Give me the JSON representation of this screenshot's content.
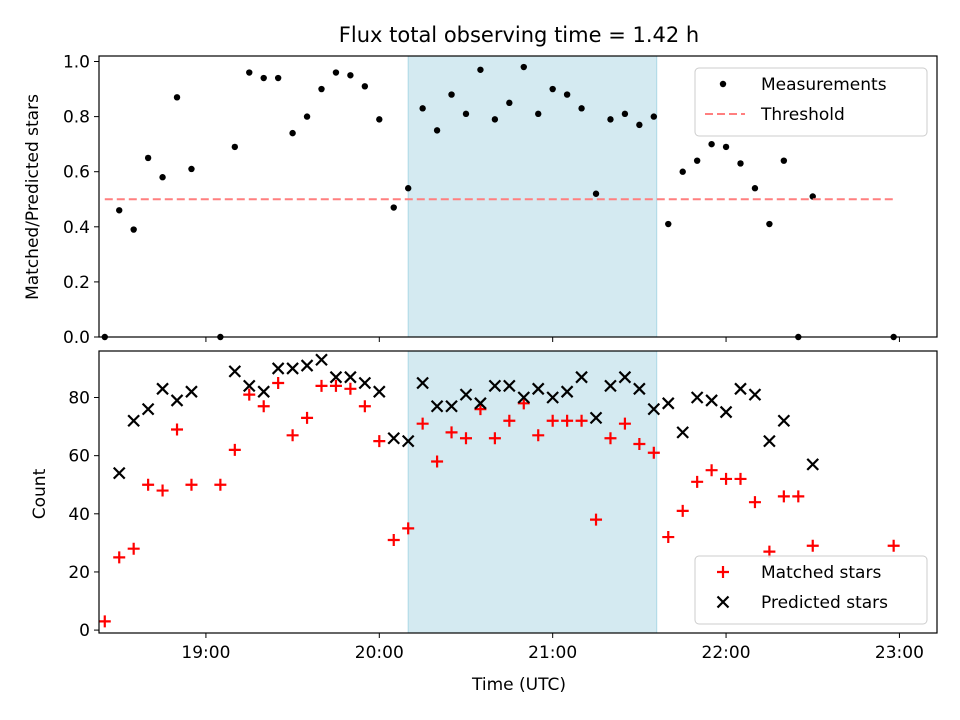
{
  "chart_data": [
    {
      "type": "scatter",
      "title": "Flux total observing time = 1.42 h",
      "xlabel": "",
      "ylabel": "Matched/Predicted stars",
      "xlim": [
        "18:23",
        "23:13"
      ],
      "ylim": [
        0,
        1.02
      ],
      "y_ticks": [
        "0.0",
        "0.2",
        "0.4",
        "0.6",
        "0.8",
        "1.0"
      ],
      "x_ticks": [
        "19:00",
        "20:00",
        "21:00",
        "22:00",
        "23:00"
      ],
      "shaded_region": {
        "x_start": "20:10",
        "x_end": "21:36",
        "color": "#d4eaf1"
      },
      "legend": {
        "position": "top-right",
        "entries": [
          "Measurements",
          "Threshold"
        ]
      },
      "series": [
        {
          "name": "Measurements",
          "marker": "dot",
          "color": "#000000",
          "points": [
            [
              "18:25",
              0.0
            ],
            [
              "18:30",
              0.46
            ],
            [
              "18:35",
              0.39
            ],
            [
              "18:40",
              0.65
            ],
            [
              "18:45",
              0.58
            ],
            [
              "18:50",
              0.87
            ],
            [
              "18:55",
              0.61
            ],
            [
              "19:05",
              0.0
            ],
            [
              "19:10",
              0.69
            ],
            [
              "19:15",
              0.96
            ],
            [
              "19:20",
              0.94
            ],
            [
              "19:25",
              0.94
            ],
            [
              "19:30",
              0.74
            ],
            [
              "19:35",
              0.8
            ],
            [
              "19:40",
              0.9
            ],
            [
              "19:45",
              0.96
            ],
            [
              "19:50",
              0.95
            ],
            [
              "19:55",
              0.91
            ],
            [
              "20:00",
              0.79
            ],
            [
              "20:05",
              0.47
            ],
            [
              "20:10",
              0.54
            ],
            [
              "20:15",
              0.83
            ],
            [
              "20:20",
              0.75
            ],
            [
              "20:25",
              0.88
            ],
            [
              "20:30",
              0.81
            ],
            [
              "20:35",
              0.97
            ],
            [
              "20:40",
              0.79
            ],
            [
              "20:45",
              0.85
            ],
            [
              "20:50",
              0.98
            ],
            [
              "20:55",
              0.81
            ],
            [
              "21:00",
              0.9
            ],
            [
              "21:05",
              0.88
            ],
            [
              "21:10",
              0.83
            ],
            [
              "21:15",
              0.52
            ],
            [
              "21:20",
              0.79
            ],
            [
              "21:25",
              0.81
            ],
            [
              "21:30",
              0.77
            ],
            [
              "21:35",
              0.8
            ],
            [
              "21:40",
              0.41
            ],
            [
              "21:45",
              0.6
            ],
            [
              "21:50",
              0.64
            ],
            [
              "21:55",
              0.7
            ],
            [
              "22:00",
              0.69
            ],
            [
              "22:05",
              0.63
            ],
            [
              "22:10",
              0.54
            ],
            [
              "22:15",
              0.41
            ],
            [
              "22:20",
              0.64
            ],
            [
              "22:25",
              0.0
            ],
            [
              "22:30",
              0.51
            ],
            [
              "22:58",
              0.0
            ]
          ]
        },
        {
          "name": "Threshold",
          "line": "dashed",
          "color": "#ff7f7f",
          "points": [
            [
              "18:25",
              0.5
            ],
            [
              "22:58",
              0.5
            ]
          ]
        }
      ]
    },
    {
      "type": "scatter",
      "title": "",
      "xlabel": "Time (UTC)",
      "ylabel": "Count",
      "xlim": [
        "18:23",
        "23:13"
      ],
      "ylim": [
        -1,
        96
      ],
      "y_ticks": [
        "0",
        "20",
        "40",
        "60",
        "80"
      ],
      "x_ticks": [
        "19:00",
        "20:00",
        "21:00",
        "22:00",
        "23:00"
      ],
      "shaded_region": {
        "x_start": "20:10",
        "x_end": "21:36",
        "color": "#d4eaf1"
      },
      "legend": {
        "position": "bottom-right",
        "entries": [
          "Matched stars",
          "Predicted stars"
        ]
      },
      "series": [
        {
          "name": "Matched stars",
          "marker": "plus",
          "color": "#ff0000",
          "points": [
            [
              "18:25",
              3
            ],
            [
              "18:30",
              25
            ],
            [
              "18:35",
              28
            ],
            [
              "18:40",
              50
            ],
            [
              "18:45",
              48
            ],
            [
              "18:50",
              69
            ],
            [
              "18:55",
              50
            ],
            [
              "19:05",
              50
            ],
            [
              "19:10",
              62
            ],
            [
              "19:15",
              81
            ],
            [
              "19:20",
              77
            ],
            [
              "19:25",
              85
            ],
            [
              "19:30",
              67
            ],
            [
              "19:35",
              73
            ],
            [
              "19:40",
              84
            ],
            [
              "19:45",
              84
            ],
            [
              "19:50",
              83
            ],
            [
              "19:55",
              77
            ],
            [
              "20:00",
              65
            ],
            [
              "20:05",
              31
            ],
            [
              "20:10",
              35
            ],
            [
              "20:15",
              71
            ],
            [
              "20:20",
              58
            ],
            [
              "20:25",
              68
            ],
            [
              "20:30",
              66
            ],
            [
              "20:35",
              76
            ],
            [
              "20:40",
              66
            ],
            [
              "20:45",
              72
            ],
            [
              "20:50",
              78
            ],
            [
              "20:55",
              67
            ],
            [
              "21:00",
              72
            ],
            [
              "21:05",
              72
            ],
            [
              "21:10",
              72
            ],
            [
              "21:15",
              38
            ],
            [
              "21:20",
              66
            ],
            [
              "21:25",
              71
            ],
            [
              "21:30",
              64
            ],
            [
              "21:35",
              61
            ],
            [
              "21:40",
              32
            ],
            [
              "21:45",
              41
            ],
            [
              "21:50",
              51
            ],
            [
              "21:55",
              55
            ],
            [
              "22:00",
              52
            ],
            [
              "22:05",
              52
            ],
            [
              "22:10",
              44
            ],
            [
              "22:15",
              27
            ],
            [
              "22:20",
              46
            ],
            [
              "22:25",
              46
            ],
            [
              "22:30",
              29
            ],
            [
              "22:58",
              29
            ]
          ]
        },
        {
          "name": "Predicted stars",
          "marker": "x",
          "color": "#000000",
          "points": [
            [
              "18:30",
              54
            ],
            [
              "18:35",
              72
            ],
            [
              "18:40",
              76
            ],
            [
              "18:45",
              83
            ],
            [
              "18:50",
              79
            ],
            [
              "18:55",
              82
            ],
            [
              "19:10",
              89
            ],
            [
              "19:15",
              84
            ],
            [
              "19:20",
              82
            ],
            [
              "19:25",
              90
            ],
            [
              "19:30",
              90
            ],
            [
              "19:35",
              91
            ],
            [
              "19:40",
              93
            ],
            [
              "19:45",
              87
            ],
            [
              "19:50",
              87
            ],
            [
              "19:55",
              85
            ],
            [
              "20:00",
              82
            ],
            [
              "20:05",
              66
            ],
            [
              "20:10",
              65
            ],
            [
              "20:15",
              85
            ],
            [
              "20:20",
              77
            ],
            [
              "20:25",
              77
            ],
            [
              "20:30",
              81
            ],
            [
              "20:35",
              78
            ],
            [
              "20:40",
              84
            ],
            [
              "20:45",
              84
            ],
            [
              "20:50",
              80
            ],
            [
              "20:55",
              83
            ],
            [
              "21:00",
              80
            ],
            [
              "21:05",
              82
            ],
            [
              "21:10",
              87
            ],
            [
              "21:15",
              73
            ],
            [
              "21:20",
              84
            ],
            [
              "21:25",
              87
            ],
            [
              "21:30",
              83
            ],
            [
              "21:35",
              76
            ],
            [
              "21:40",
              78
            ],
            [
              "21:45",
              68
            ],
            [
              "21:50",
              80
            ],
            [
              "21:55",
              79
            ],
            [
              "22:00",
              75
            ],
            [
              "22:05",
              83
            ],
            [
              "22:10",
              81
            ],
            [
              "22:15",
              65
            ],
            [
              "22:20",
              72
            ],
            [
              "22:30",
              57
            ]
          ]
        }
      ]
    }
  ]
}
